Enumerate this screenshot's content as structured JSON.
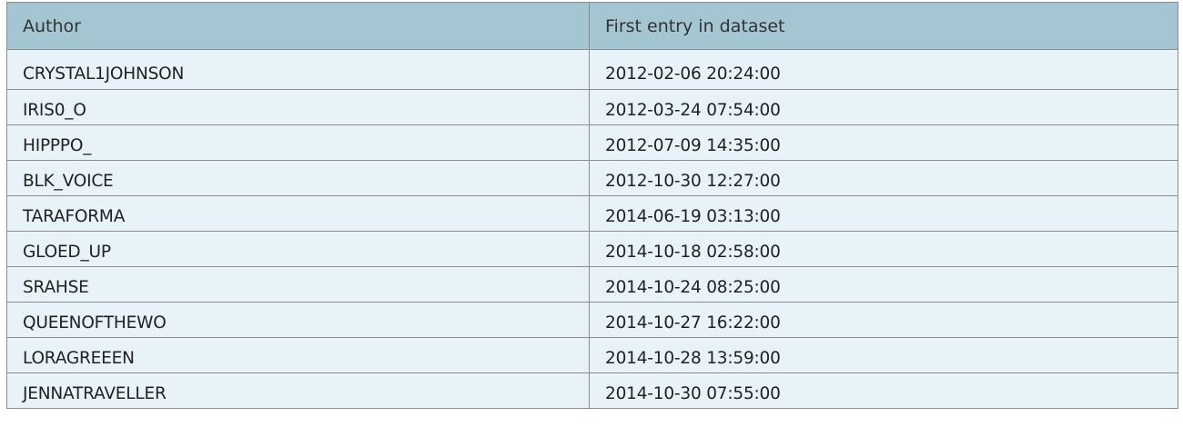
{
  "table": {
    "headers": [
      "Author",
      "First entry in dataset"
    ],
    "rows": [
      [
        "CRYSTAL1JOHNSON",
        "2012-02-06 20:24:00"
      ],
      [
        "IRIS0_O",
        "2012-03-24 07:54:00"
      ],
      [
        "HIPPPO_",
        "2012-07-09 14:35:00"
      ],
      [
        "BLK_VOICE",
        "2012-10-30 12:27:00"
      ],
      [
        "TARAFORMA",
        "2014-06-19 03:13:00"
      ],
      [
        "GLOED_UP",
        "2014-10-18 02:58:00"
      ],
      [
        "SRAHSE",
        "2014-10-24 08:25:00"
      ],
      [
        "QUEENOFTHEWO",
        "2014-10-27 16:22:00"
      ],
      [
        "LORAGREEEN",
        "2014-10-28 13:59:00"
      ],
      [
        "JENNATRAVELLER",
        "2014-10-30 07:55:00"
      ]
    ]
  },
  "colors": {
    "header_bg": "#a4c6d2",
    "row_bg": "#e7f3f8",
    "border": "#8d8d8d"
  }
}
